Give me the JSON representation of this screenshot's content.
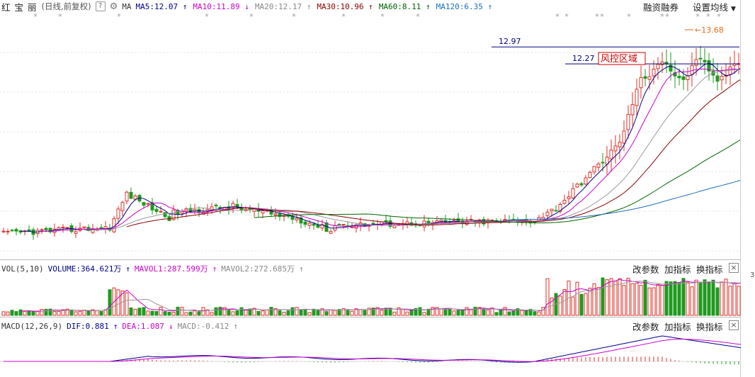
{
  "header": {
    "stock_name": "红 宝 丽",
    "period": "(日线,前复权)",
    "help_icon": "?",
    "settings_icon": "gear-icon",
    "ma_label": "MA",
    "ma_items": [
      {
        "label": "MA5:12.07",
        "color": "#00008b",
        "arrow": "↑"
      },
      {
        "label": "MA10:11.89",
        "color": "#cc00cc",
        "arrow": "↓"
      },
      {
        "label": "MA20:12.17",
        "color": "#888888",
        "arrow": "↑"
      },
      {
        "label": "MA30:10.96",
        "color": "#8b0000",
        "arrow": "↑"
      },
      {
        "label": "MA60:8.11",
        "color": "#006400",
        "arrow": "↑"
      },
      {
        "label": "MA120:6.35",
        "color": "#1e6ebe",
        "arrow": "↑"
      }
    ],
    "margin_trading": "融资融券",
    "set_ma": "设置均线"
  },
  "main_chart": {
    "price_lines": [
      {
        "label": "12.97",
        "value": 12.97
      },
      {
        "label": "12.27",
        "value": 12.27
      }
    ],
    "risk_zone": "风控区域",
    "high_label": "13.68",
    "low_price": 5.0,
    "high_price": 13.68
  },
  "volume_panel": {
    "title": "VOL(5,10)",
    "volume": "VOLUME:364.621万",
    "mavol1": "MAVOL1:287.599万",
    "mavol2": "MAVOL2:272.685万",
    "right_digit": "3",
    "buttons": [
      "改参数",
      "加指标",
      "换指标"
    ]
  },
  "macd_panel": {
    "title": "MACD(12,26,9)",
    "dif": "DIF:0.881",
    "dea": "DEA:1.087",
    "macd": "MACD:-0.412",
    "buttons": [
      "改参数",
      "加指标",
      "换指标"
    ]
  },
  "colors": {
    "up": "#e0302a",
    "down": "#1f9a1f",
    "ma5": "#00008b",
    "ma10": "#cc00cc",
    "ma20": "#999999",
    "ma30": "#8b0000",
    "ma60": "#006400",
    "ma120": "#1e6ebe",
    "price_line": "#000080",
    "risk_box": "#d00000"
  }
}
